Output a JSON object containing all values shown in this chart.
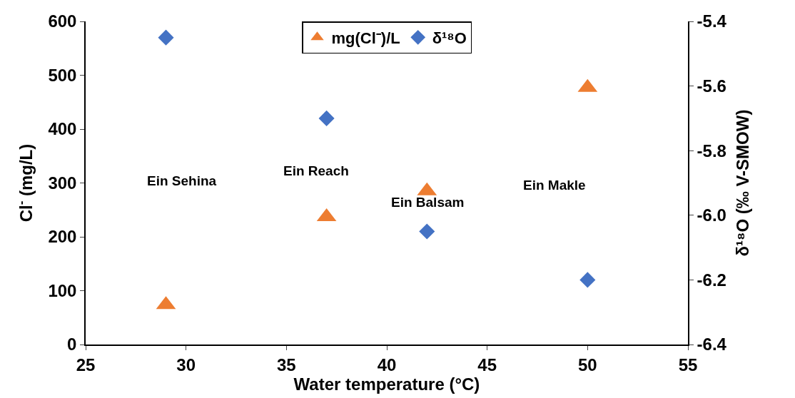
{
  "chart_data": {
    "type": "scatter",
    "xlabel": "Water temperature (°C)",
    "ylabel": "Cl$^{-}$ (mg/L)",
    "y2label": "δ¹⁸O (‰ V-SMOW)",
    "x": [
      29,
      37,
      42,
      50
    ],
    "series": [
      {
        "name": "mg(Cl⁻)/L",
        "color": "#ed7d31",
        "marker": "triangle",
        "values": [
          74,
          237,
          285,
          477
        ]
      },
      {
        "name": "δ¹⁸O",
        "color": "#4472c4",
        "marker": "diamond",
        "axis": "y2",
        "values": [
          -5.45,
          -5.7,
          -6.05,
          -6.2
        ]
      }
    ],
    "xlim": [
      25,
      55
    ],
    "xticks": [
      25,
      30,
      35,
      40,
      45,
      50,
      55
    ],
    "ylim": [
      0,
      600
    ],
    "yticks": [
      0,
      100,
      200,
      300,
      400,
      500,
      600
    ],
    "y2lim": [
      -6.4,
      -5.4
    ],
    "y2ticks": [
      -6.4,
      -6.2,
      {
        "value": -6,
        "label": "-6.0"
      },
      -5.8,
      -5.6,
      -5.4
    ],
    "annotations": [
      "Ein Sehina",
      "Ein Reach",
      "Ein Balsam",
      "Ein Makle"
    ],
    "legend": "top"
  }
}
